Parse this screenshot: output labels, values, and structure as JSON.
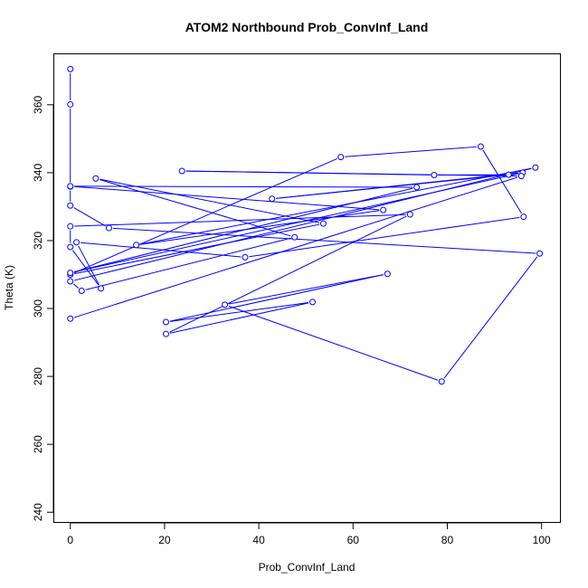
{
  "chart_data": {
    "type": "line",
    "title": "ATOM2 Northbound Prob_ConvInf_Land",
    "xlabel": "Prob_ConvInf_Land",
    "ylabel": "Theta (K)",
    "xlim": [
      -3.5,
      104
    ],
    "ylim": [
      237,
      375
    ],
    "x_ticks": [
      0,
      20,
      40,
      60,
      80,
      100
    ],
    "y_ticks": [
      240,
      260,
      280,
      300,
      320,
      340,
      360
    ],
    "grid": false,
    "series_color": "#0000ff",
    "point_style": "open-circle",
    "points": [
      {
        "x": 0,
        "y": 370.5
      },
      {
        "x": 0,
        "y": 360.1
      },
      {
        "x": 0,
        "y": 335.9
      },
      {
        "x": 0,
        "y": 330.3
      },
      {
        "x": 8.2,
        "y": 323.7
      },
      {
        "x": 99.6,
        "y": 316.2
      },
      {
        "x": 78.8,
        "y": 278.5
      },
      {
        "x": 32.8,
        "y": 301.1
      },
      {
        "x": 67.3,
        "y": 310.2
      },
      {
        "x": 20.3,
        "y": 296.0
      },
      {
        "x": 51.4,
        "y": 301.9
      },
      {
        "x": 20.3,
        "y": 292.5
      },
      {
        "x": 72.1,
        "y": 327.7
      },
      {
        "x": 0,
        "y": 324.2
      },
      {
        "x": 0,
        "y": 318.1
      },
      {
        "x": 6.5,
        "y": 305.9
      },
      {
        "x": 1.3,
        "y": 319.5
      },
      {
        "x": 37.1,
        "y": 315.1
      },
      {
        "x": 96.2,
        "y": 327.0
      },
      {
        "x": 87.1,
        "y": 347.7
      },
      {
        "x": 57.4,
        "y": 344.6
      },
      {
        "x": 0,
        "y": 310.0
      },
      {
        "x": 53.7,
        "y": 325.0
      },
      {
        "x": 5.4,
        "y": 338.3
      },
      {
        "x": 47.6,
        "y": 321.0
      },
      {
        "x": 2.4,
        "y": 305.2
      },
      {
        "x": 0,
        "y": 308.0
      },
      {
        "x": 98.7,
        "y": 341.5
      },
      {
        "x": 14.0,
        "y": 318.7
      },
      {
        "x": 66.4,
        "y": 329.0
      },
      {
        "x": 0,
        "y": 336.0
      },
      {
        "x": 73.5,
        "y": 335.7
      },
      {
        "x": 0,
        "y": 310.5
      },
      {
        "x": 96.0,
        "y": 340.0
      },
      {
        "x": 42.8,
        "y": 332.3
      },
      {
        "x": 93.0,
        "y": 339.4
      },
      {
        "x": 77.2,
        "y": 339.3
      },
      {
        "x": 23.7,
        "y": 340.5
      },
      {
        "x": 95.7,
        "y": 339.0
      },
      {
        "x": 0,
        "y": 297.0
      }
    ]
  }
}
